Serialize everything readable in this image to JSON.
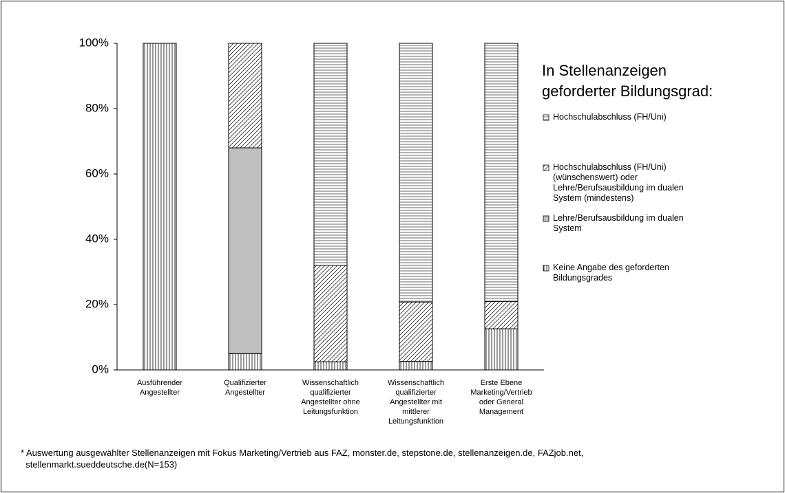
{
  "chart_data": {
    "type": "stacked-bar",
    "legend_title": "In Stellenanzeigen\ngeforderter Bildungsgrad:",
    "categories": [
      "Ausführender\nAngestellter",
      "Qualifizierter\nAngestellter",
      "Wissenschaftlich\nqualifizierter\nAngestellter ohne\nLeitungsfunktion",
      "Wissenschaftlich\nqualifizierter\nAngestellter mit\nmittlerer\nLeitungsfunktion",
      "Erste Ebene\nMarketing/Vertrieb\noder General\nManagement"
    ],
    "series": [
      {
        "name": "Keine Angabe des geforderten\nBildungsgrades",
        "color": "#000000",
        "pattern": "vertical-lines",
        "values": [
          100,
          5,
          2.5,
          2.6,
          12.6
        ]
      },
      {
        "name": "Lehre/Berufsausbildung im dualen\nSystem",
        "color": "#bfbfbf",
        "pattern": "solid",
        "values": [
          0,
          63,
          0,
          0,
          0
        ]
      },
      {
        "name": "Hochschulabschluss (FH/Uni)\n(wünschenswert) oder\nLehre/Berufsausbildung im dualen\nSystem (mindestens)",
        "color": "#000000",
        "pattern": "diagonal-lines",
        "values": [
          0,
          32,
          29.5,
          18.2,
          8.4
        ]
      },
      {
        "name": "Hochschulabschluss (FH/Uni)",
        "color": "#000000",
        "pattern": "horizontal-lines",
        "values": [
          0,
          0,
          68,
          79.2,
          79
        ]
      }
    ],
    "ylim": [
      0,
      100
    ],
    "yticks": [
      {
        "value": 0,
        "label": "0%"
      },
      {
        "value": 20,
        "label": "20%"
      },
      {
        "value": 40,
        "label": "40%"
      },
      {
        "value": 60,
        "label": "60%"
      },
      {
        "value": 80,
        "label": "80%"
      },
      {
        "value": 100,
        "label": "100%"
      }
    ],
    "grid": false,
    "legend": "right",
    "note": "* Auswertung ausgewählter Stellenanzeigen mit Fokus Marketing/Vertrieb aus FAZ, monster.de, stepstone.de, stellenanzeigen.de, FAZjob.net,\n  stellenmarkt.sueddeutsche.de(N=153)"
  }
}
